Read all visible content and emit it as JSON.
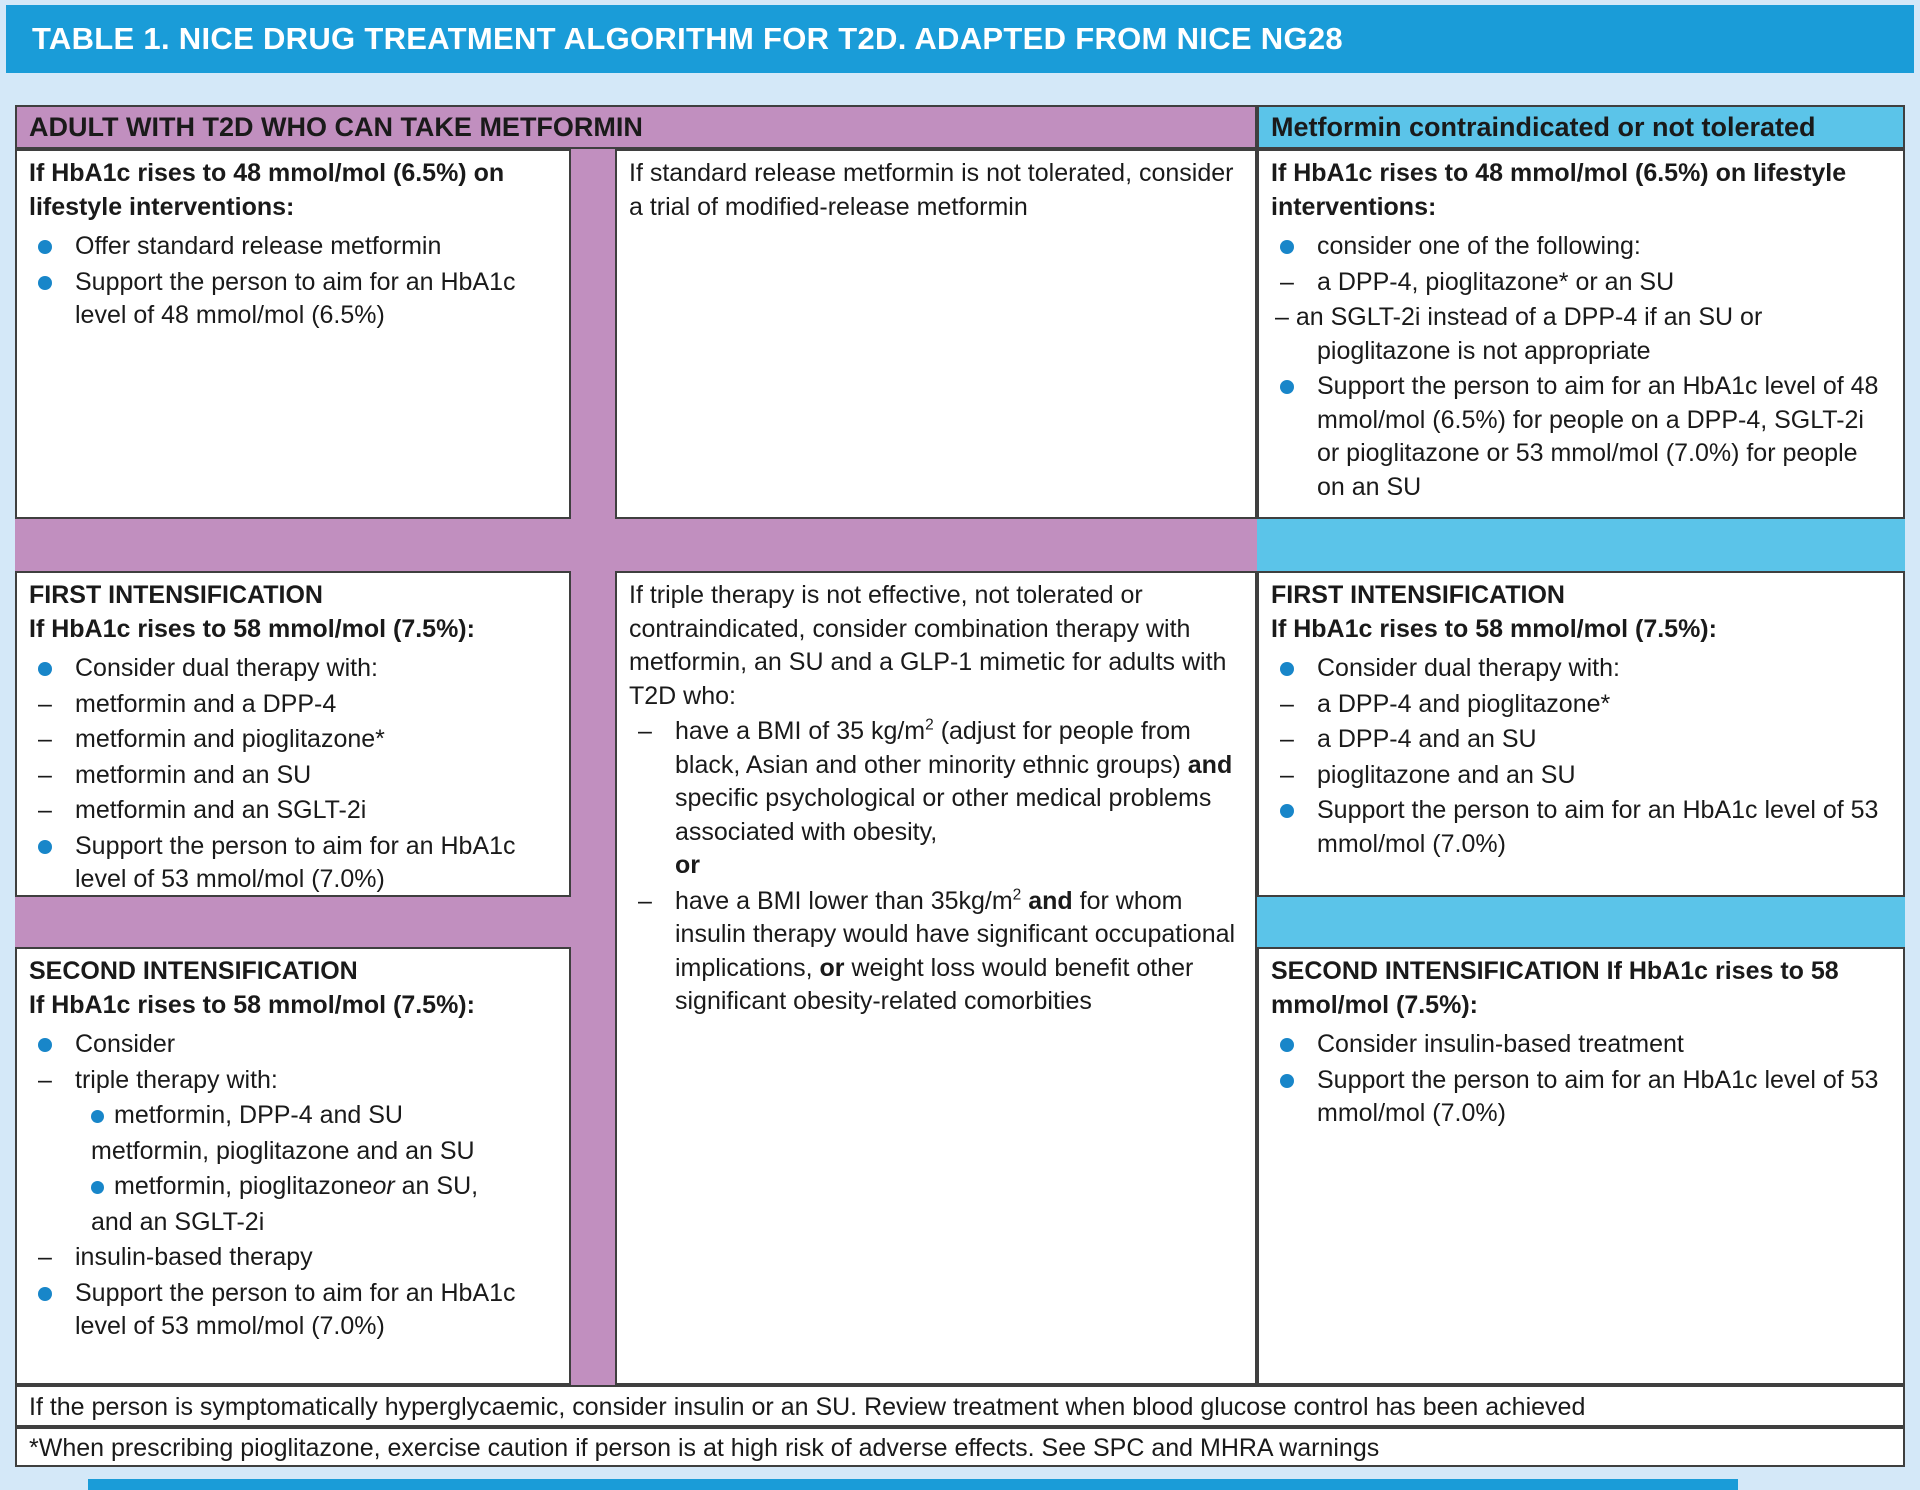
{
  "title": "TABLE 1. NICE DRUG TREATMENT ALGORITHM FOR T2D. ADAPTED FROM NICE NG28",
  "colors": {
    "title_bar_blue": "#1a9cd8",
    "page_background": "#d4e8f8",
    "purple_band": "#c18fbf",
    "cyan_band": "#5bc4e9",
    "bullet_blue": "#1886c9",
    "cell_border": "#3f3f3f"
  },
  "column_headers": {
    "metformin": "ADULT WITH T2D WHO CAN TAKE METFORMIN",
    "contraindicated": "Metformin contraindicated or not tolerated"
  },
  "cells": {
    "left_top": {
      "heading": "If HbA1c rises to 48 mmol/mol (6.5%) on lifestyle interventions:",
      "items": [
        {
          "m": "bullet",
          "r": [
            {
              "t": "Offer standard release metformin"
            }
          ]
        },
        {
          "m": "bullet",
          "r": [
            {
              "t": "Support the person to aim for an HbA1c level of 48 mmol/mol (6.5%)"
            }
          ]
        }
      ]
    },
    "mid_top": {
      "text": "If standard release metformin is not tolerated, consider a trial of modified-release metformin"
    },
    "right_top": {
      "heading": "If HbA1c rises to 48 mmol/mol (6.5%) on lifestyle interventions:",
      "items": [
        {
          "m": "bullet",
          "r": [
            {
              "t": "consider one of the following:"
            }
          ]
        },
        {
          "m": "dash",
          "r": [
            {
              "t": "a DPP-4, pioglitazone* or an SU"
            }
          ]
        },
        {
          "m": "dashTight",
          "r": [
            {
              "t": "an SGLT-2i instead of a DPP-4 if an SU or pioglitazone is not appropriate"
            }
          ]
        },
        {
          "m": "bullet",
          "r": [
            {
              "t": "Support the person to aim for an HbA1c level of 48 mmol/mol (6.5%) for people on a DPP-4, SGLT-2i or pioglitazone or 53 mmol/mol (7.0%) for people on an SU"
            }
          ]
        }
      ]
    },
    "left_first": {
      "heading": "FIRST INTENSIFICATION\nIf HbA1c rises to 58 mmol/mol (7.5%):",
      "items": [
        {
          "m": "bullet",
          "r": [
            {
              "t": "Consider dual therapy with:"
            }
          ]
        },
        {
          "m": "dash",
          "r": [
            {
              "t": "metformin and a DPP-4"
            }
          ]
        },
        {
          "m": "dash",
          "r": [
            {
              "t": "metformin and pioglitazone*"
            }
          ]
        },
        {
          "m": "dash",
          "r": [
            {
              "t": "metformin and an SU"
            }
          ]
        },
        {
          "m": "dash",
          "r": [
            {
              "t": "metformin and an SGLT-2i"
            }
          ]
        },
        {
          "m": "bullet",
          "r": [
            {
              "t": "Support the person to aim for an HbA1c level of 53 mmol/mol (7.0%)"
            }
          ]
        }
      ]
    },
    "mid_tall": {
      "text": "If triple therapy is not effective, not tolerated or contraindicated, consider combination therapy with metformin, an SU and a GLP-1 mimetic for adults with T2D who:",
      "items": [
        {
          "m": "dash",
          "r": [
            {
              "t": "have a BMI of 35 kg/m"
            },
            {
              "t": "2",
              "sup": true
            },
            {
              "t": " (adjust for people from black, Asian and other minority ethnic groups) "
            },
            {
              "t": "and",
              "b": true
            },
            {
              "t": " specific psychological or other medical problems associated with obesity,"
            },
            {
              "br": true
            },
            {
              "t": "or",
              "b": true
            }
          ]
        },
        {
          "m": "dash",
          "r": [
            {
              "t": "have a BMI lower than 35kg/m"
            },
            {
              "t": "2",
              "sup": true
            },
            {
              "t": " "
            },
            {
              "t": "and",
              "b": true
            },
            {
              "t": " for whom insulin therapy would have significant occupational implications, "
            },
            {
              "t": "or",
              "b": true
            },
            {
              "t": " weight loss would benefit other significant obesity-related comorbities"
            }
          ]
        }
      ]
    },
    "right_first": {
      "heading": "FIRST INTENSIFICATION\nIf HbA1c rises to 58 mmol/mol (7.5%):",
      "items": [
        {
          "m": "bullet",
          "r": [
            {
              "t": "Consider dual therapy with:"
            }
          ]
        },
        {
          "m": "dash",
          "r": [
            {
              "t": "a DPP-4 and pioglitazone*"
            }
          ]
        },
        {
          "m": "dash",
          "r": [
            {
              "t": "a DPP-4 and an SU"
            }
          ]
        },
        {
          "m": "dash",
          "r": [
            {
              "t": "pioglitazone and an SU"
            }
          ]
        },
        {
          "m": "bullet",
          "r": [
            {
              "t": "Support the person to aim for an HbA1c level of 53 mmol/mol (7.0%)"
            }
          ]
        }
      ]
    },
    "left_second": {
      "heading": "SECOND INTENSIFICATION\nIf HbA1c rises to 58 mmol/mol (7.5%):",
      "items": [
        {
          "m": "bullet",
          "r": [
            {
              "t": "Consider"
            }
          ]
        },
        {
          "m": "dash",
          "r": [
            {
              "t": "triple therapy with:"
            }
          ]
        },
        {
          "m": "sub",
          "r": [
            {
              "t": "metformin, DPP-4 and SU"
            }
          ]
        },
        {
          "m": "cont",
          "r": [
            {
              "t": "metformin, pioglitazone and an SU"
            }
          ]
        },
        {
          "m": "sub",
          "r": [
            {
              "t": "metformin, pioglitazone"
            },
            {
              "t": "or",
              "i": true
            },
            {
              "t": " an SU,"
            }
          ]
        },
        {
          "m": "cont",
          "r": [
            {
              "t": "and an SGLT-2i"
            }
          ]
        },
        {
          "m": "dash",
          "r": [
            {
              "t": "insulin-based therapy"
            }
          ]
        },
        {
          "m": "bullet",
          "r": [
            {
              "t": "Support the person to aim for an HbA1c level of 53 mmol/mol (7.0%)"
            }
          ]
        }
      ]
    },
    "right_second": {
      "heading": "SECOND INTENSIFICATION If HbA1c rises to 58 mmol/mol (7.5%):",
      "items": [
        {
          "m": "bullet",
          "r": [
            {
              "t": "Consider insulin-based treatment"
            }
          ]
        },
        {
          "m": "bullet",
          "r": [
            {
              "t": "Support the person to aim for an HbA1c level of 53 mmol/mol (7.0%)"
            }
          ]
        }
      ]
    }
  },
  "footnotes": {
    "hyperglycaemic": "If the person is symptomatically hyperglycaemic, consider insulin or an SU. Review treatment when blood glucose control has been achieved",
    "pioglitazone": "*When prescribing pioglitazone, exercise caution if person is at high risk of adverse effects. See SPC and MHRA warnings"
  }
}
